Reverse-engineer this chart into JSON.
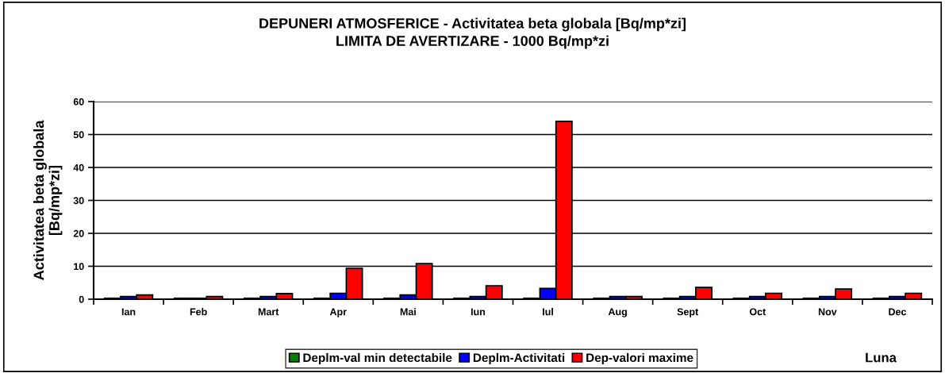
{
  "chart_data": {
    "type": "bar",
    "title": "DEPUNERI ATMOSFERICE - Activitatea beta globala [Bq/mp*zi]\nLIMITA DE AVERTIZARE - 1000 Bq/mp*zi",
    "xlabel": "Luna",
    "ylabel": "Activitatea beta globala\n[Bq/mp*zi]",
    "categories": [
      "Ian",
      "Feb",
      "Mart",
      "Apr",
      "Mai",
      "Iun",
      "Iul",
      "Aug",
      "Sept",
      "Oct",
      "Nov",
      "Dec"
    ],
    "series": [
      {
        "name": "Deplm-val min detectabile",
        "color": "#008000",
        "values": [
          0.3,
          0.3,
          0.3,
          0.3,
          0.3,
          0.3,
          0.3,
          0.3,
          0.3,
          0.3,
          0.3,
          0.3
        ]
      },
      {
        "name": "Deplm-Activitati",
        "color": "#0000ff",
        "values": [
          0.8,
          0.3,
          0.8,
          1.8,
          1.3,
          0.8,
          3.3,
          0.8,
          0.8,
          0.8,
          0.8,
          0.8
        ]
      },
      {
        "name": "Dep-valori maxime",
        "color": "#ff0000",
        "values": [
          1.3,
          0.8,
          1.7,
          9.4,
          10.8,
          4.1,
          54,
          0.8,
          3.6,
          1.8,
          3.1,
          1.8
        ]
      }
    ],
    "ylim": [
      0,
      60
    ],
    "yticks": [
      0,
      10,
      20,
      30,
      40,
      50,
      60
    ],
    "grid": "y",
    "legend": "bottom"
  }
}
